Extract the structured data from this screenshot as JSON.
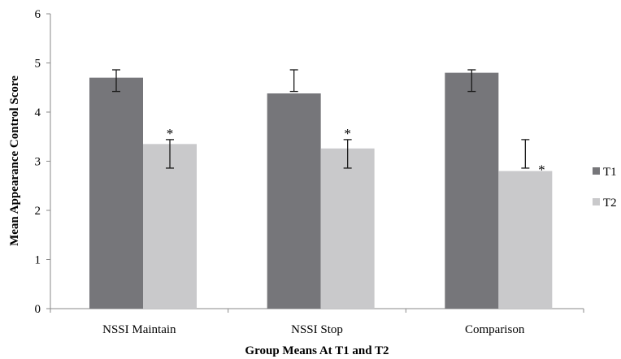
{
  "chart_data": {
    "type": "bar",
    "title": "",
    "xlabel": "Group Means At T1 and T2",
    "ylabel": "Mean Appearance Control Score",
    "ylim": [
      0,
      6
    ],
    "yticks": [
      "0",
      "1",
      "2",
      "3",
      "4",
      "5",
      "6"
    ],
    "grid": false,
    "legend_position": "right",
    "categories": [
      "NSSI Maintain",
      "NSSI Stop",
      "Comparison"
    ],
    "series": [
      {
        "name": "T1",
        "color": "#76767a",
        "values": [
          4.7,
          4.38,
          4.8
        ],
        "error_low": [
          4.42,
          4.42,
          4.42
        ],
        "error_high": [
          4.86,
          4.86,
          4.86
        ]
      },
      {
        "name": "T2",
        "color": "#c9c9cb",
        "values": [
          3.35,
          3.26,
          2.8
        ],
        "error_low": [
          2.86,
          2.86,
          2.86
        ],
        "error_high": [
          3.44,
          3.44,
          3.44
        ]
      }
    ],
    "annotations": [
      "*",
      "*",
      "*"
    ]
  }
}
